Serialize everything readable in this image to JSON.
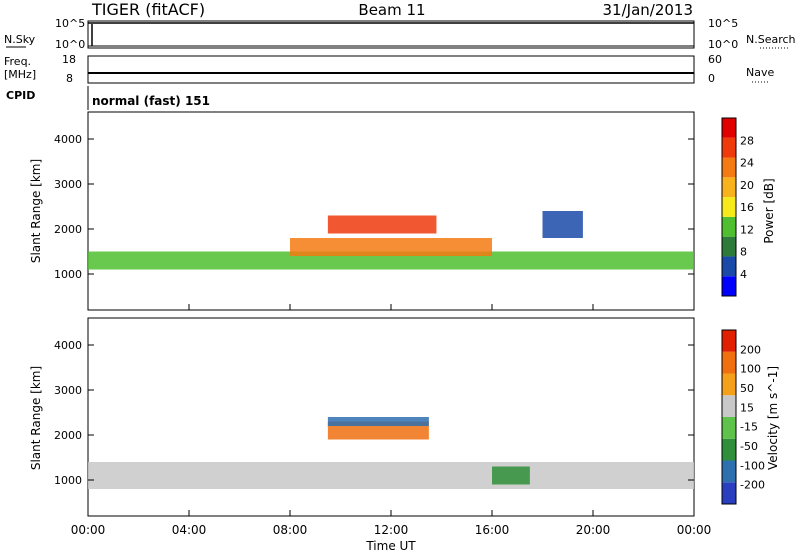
{
  "header": {
    "radar": "TIGER (fitACF)",
    "beam": "Beam 11",
    "date": "31/Jan/2013"
  },
  "top_panels": {
    "nsky_label": "N.Sky",
    "nsky_ticks": [
      "10^5",
      "10^0"
    ],
    "nsearch_label": "N.Search",
    "nsearch_ticks": [
      "10^5",
      "10^0"
    ],
    "freq_label": "Freq.",
    "freq_unit": "[MHz]",
    "freq_ticks": [
      "18",
      "8"
    ],
    "nave_label": "Nave",
    "nave_ticks": [
      "60",
      "0"
    ],
    "cpid_label": "CPID",
    "cpid_value": "normal (fast) 151"
  },
  "chart_data": [
    {
      "type": "heatmap",
      "ylabel": "Slant Range [km]",
      "ylim": [
        200,
        4600
      ],
      "yticks": [
        "4000",
        "3000",
        "2000",
        "1000"
      ],
      "xlim": [
        "00:00",
        "24:00"
      ],
      "colorbar": {
        "label": "Power [dB]",
        "ticks": [
          "28",
          "24",
          "20",
          "16",
          "12",
          "8",
          "4"
        ],
        "colors": [
          "#0000ff",
          "#1a4aa8",
          "#2e7a3a",
          "#4fbf2f",
          "#f6ea1a",
          "#f7b21c",
          "#f47a12",
          "#ef3a0c",
          "#e00000"
        ]
      },
      "bands": [
        {
          "hours": [
            0.0,
            24.0
          ],
          "range_km": [
            1100,
            1500
          ],
          "value": 14
        },
        {
          "hours": [
            9.5,
            13.8
          ],
          "range_km": [
            1900,
            2300
          ],
          "value": 26
        },
        {
          "hours": [
            8.0,
            16.0
          ],
          "range_km": [
            1400,
            1800
          ],
          "value": 22
        },
        {
          "hours": [
            18.0,
            19.6
          ],
          "range_km": [
            1800,
            2400
          ],
          "value": 8
        }
      ]
    },
    {
      "type": "heatmap",
      "ylabel": "Slant Range [km]",
      "ylim": [
        200,
        4600
      ],
      "yticks": [
        "4000",
        "3000",
        "2000",
        "1000"
      ],
      "xlabel": "Time UT",
      "xticks": [
        "00:00",
        "04:00",
        "08:00",
        "12:00",
        "16:00",
        "20:00",
        "00:00"
      ],
      "colorbar": {
        "label": "Velocity [m s^-1]",
        "ticks": [
          "200",
          "100",
          "50",
          "15",
          "-15",
          "-50",
          "-100",
          "-200"
        ],
        "colors": [
          "#2a3fbf",
          "#2e6fb0",
          "#2f8f3a",
          "#5fc24a",
          "#c8c8c8",
          "#f5a01a",
          "#f07010",
          "#e02000"
        ]
      },
      "bands": [
        {
          "hours": [
            0.0,
            24.0
          ],
          "range_km": [
            800,
            1400
          ],
          "value": 0
        },
        {
          "hours": [
            9.5,
            13.5
          ],
          "range_km": [
            1900,
            2300
          ],
          "value": 150
        },
        {
          "hours": [
            9.5,
            13.5
          ],
          "range_km": [
            2200,
            2400
          ],
          "value": -150
        },
        {
          "hours": [
            16.0,
            17.5
          ],
          "range_km": [
            900,
            1300
          ],
          "value": -80
        }
      ]
    }
  ],
  "time_axis_label": "Time UT"
}
